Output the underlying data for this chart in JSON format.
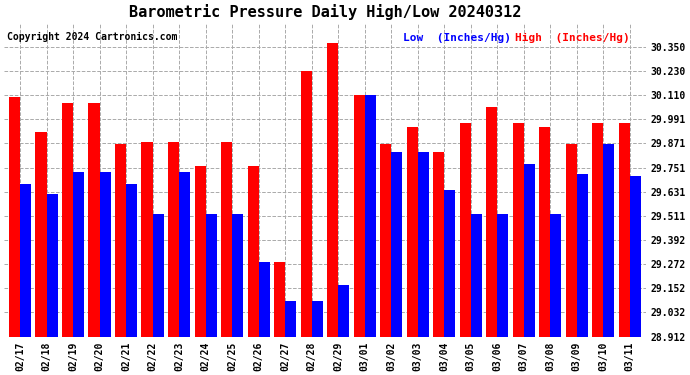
{
  "title": "Barometric Pressure Daily High/Low 20240312",
  "copyright": "Copyright 2024 Cartronics.com",
  "legend_low": "Low  (Inches/Hg)",
  "legend_high": "High  (Inches/Hg)",
  "dates": [
    "02/17",
    "02/18",
    "02/19",
    "02/20",
    "02/21",
    "02/22",
    "02/23",
    "02/24",
    "02/25",
    "02/26",
    "02/27",
    "02/28",
    "02/29",
    "03/01",
    "03/02",
    "03/03",
    "03/04",
    "03/05",
    "03/06",
    "03/07",
    "03/08",
    "03/09",
    "03/10",
    "03/11"
  ],
  "high": [
    30.1,
    29.93,
    30.07,
    30.07,
    29.87,
    29.88,
    29.88,
    29.76,
    29.88,
    29.76,
    29.28,
    30.23,
    30.37,
    30.11,
    29.87,
    29.95,
    29.83,
    29.97,
    30.05,
    29.97,
    29.95,
    29.87,
    29.97,
    29.97
  ],
  "low": [
    29.67,
    29.62,
    29.73,
    29.73,
    29.67,
    29.52,
    29.73,
    29.52,
    29.52,
    29.28,
    29.09,
    29.09,
    29.17,
    30.11,
    29.83,
    29.83,
    29.64,
    29.52,
    29.52,
    29.77,
    29.52,
    29.72,
    29.87,
    29.71
  ],
  "ylim_min": 28.912,
  "ylim_max": 30.47,
  "yticks": [
    28.912,
    29.032,
    29.152,
    29.272,
    29.392,
    29.511,
    29.631,
    29.751,
    29.871,
    29.991,
    30.11,
    30.23,
    30.35
  ],
  "bar_color_high": "#ff0000",
  "bar_color_low": "#0000ff",
  "bg_color": "#ffffff",
  "title_fontsize": 11,
  "tick_fontsize": 7,
  "copyright_fontsize": 7,
  "legend_fontsize": 8
}
